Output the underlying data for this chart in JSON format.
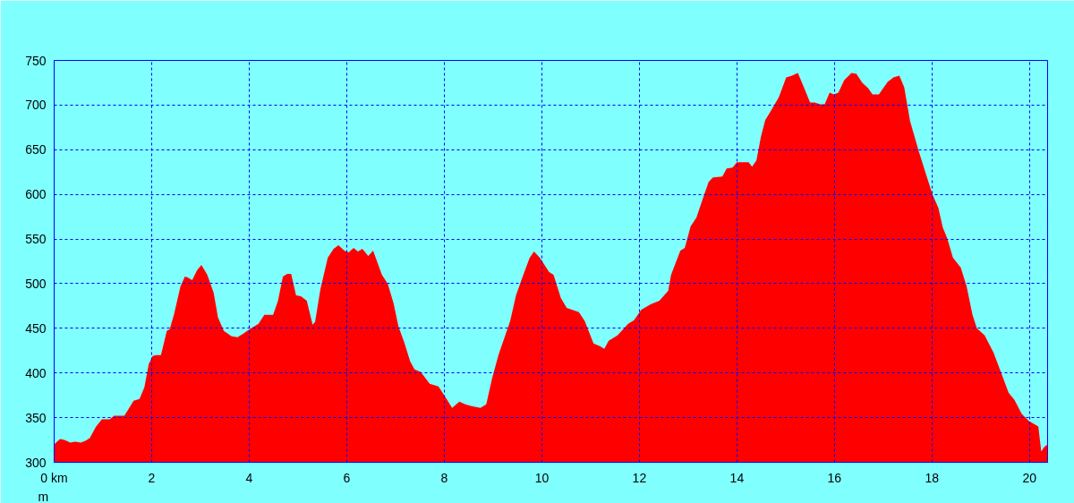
{
  "chart_data": {
    "type": "area",
    "ylabel": "m",
    "xlim": [
      0,
      20.37
    ],
    "ylim": [
      300,
      750
    ],
    "xticks": [
      {
        "value": 0,
        "label": "0 km"
      },
      2,
      4,
      6,
      8,
      10,
      12,
      14,
      16,
      18,
      20
    ],
    "yticks": [
      300,
      350,
      400,
      450,
      500,
      550,
      600,
      650,
      700,
      750
    ],
    "grid": true,
    "x": [
      0,
      0.12,
      0.21,
      0.33,
      0.43,
      0.55,
      0.64,
      0.73,
      0.86,
      0.98,
      1.14,
      1.23,
      1.44,
      1.63,
      1.75,
      1.85,
      1.94,
      2.02,
      2.09,
      2.19,
      2.31,
      2.37,
      2.46,
      2.59,
      2.68,
      2.74,
      2.83,
      2.93,
      3.02,
      3.14,
      3.27,
      3.36,
      3.48,
      3.64,
      3.76,
      3.88,
      4.01,
      4.19,
      4.31,
      4.49,
      4.59,
      4.69,
      4.78,
      4.86,
      4.96,
      5.06,
      5.18,
      5.3,
      5.35,
      5.46,
      5.61,
      5.73,
      5.83,
      5.95,
      6.04,
      6.14,
      6.23,
      6.32,
      6.44,
      6.54,
      6.72,
      6.84,
      6.96,
      7.06,
      7.18,
      7.3,
      7.39,
      7.52,
      7.7,
      7.88,
      8.0,
      8.16,
      8.31,
      8.43,
      8.56,
      8.74,
      8.86,
      8.98,
      9.11,
      9.23,
      9.35,
      9.47,
      9.6,
      9.75,
      9.84,
      9.96,
      10.15,
      10.24,
      10.39,
      10.51,
      10.76,
      10.88,
      11.06,
      11.19,
      11.28,
      11.37,
      11.55,
      11.77,
      11.89,
      12.04,
      12.23,
      12.41,
      12.59,
      12.65,
      12.84,
      12.93,
      13.05,
      13.17,
      13.33,
      13.42,
      13.51,
      13.7,
      13.79,
      13.91,
      14.0,
      14.24,
      14.31,
      14.4,
      14.49,
      14.58,
      14.7,
      14.86,
      15.01,
      15.13,
      15.25,
      15.38,
      15.5,
      15.59,
      15.71,
      15.8,
      15.9,
      15.99,
      16.08,
      16.2,
      16.35,
      16.45,
      16.57,
      16.69,
      16.78,
      16.91,
      17.09,
      17.21,
      17.33,
      17.43,
      17.55,
      17.73,
      17.88,
      18.01,
      18.13,
      18.22,
      18.31,
      18.43,
      18.59,
      18.71,
      18.83,
      18.92,
      19.08,
      19.26,
      19.44,
      19.57,
      19.69,
      19.84,
      19.99,
      20.18,
      20.24,
      20.3,
      20.37
    ],
    "series": [
      {
        "color": "#ff0000",
        "values": [
          320,
          326,
          325,
          322,
          323,
          322,
          324,
          327,
          340,
          348,
          348,
          352,
          352,
          369,
          371,
          384,
          410,
          419,
          420,
          420,
          447,
          449,
          466,
          497,
          508,
          507,
          504,
          515,
          521,
          510,
          490,
          462,
          447,
          441,
          440,
          444,
          449,
          455,
          465,
          465,
          481,
          508,
          511,
          511,
          487,
          486,
          481,
          454,
          457,
          494,
          529,
          539,
          543,
          537,
          535,
          540,
          536,
          539,
          531,
          537,
          510,
          500,
          478,
          452,
          434,
          413,
          404,
          401,
          388,
          385,
          375,
          361,
          368,
          365,
          363,
          361,
          365,
          394,
          420,
          439,
          458,
          487,
          507,
          529,
          536,
          529,
          513,
          510,
          484,
          473,
          468,
          458,
          433,
          430,
          427,
          436,
          442,
          455,
          459,
          471,
          477,
          481,
          492,
          510,
          537,
          540,
          564,
          574,
          600,
          614,
          619,
          620,
          629,
          630,
          636,
          636,
          631,
          638,
          664,
          683,
          694,
          709,
          731,
          733,
          736,
          719,
          703,
          703,
          701,
          701,
          714,
          712,
          714,
          728,
          736,
          735,
          725,
          719,
          712,
          712,
          726,
          731,
          733,
          720,
          682,
          648,
          622,
          600,
          585,
          563,
          551,
          529,
          518,
          497,
          465,
          450,
          442,
          423,
          397,
          378,
          370,
          354,
          346,
          340,
          312,
          317,
          320
        ]
      }
    ]
  }
}
